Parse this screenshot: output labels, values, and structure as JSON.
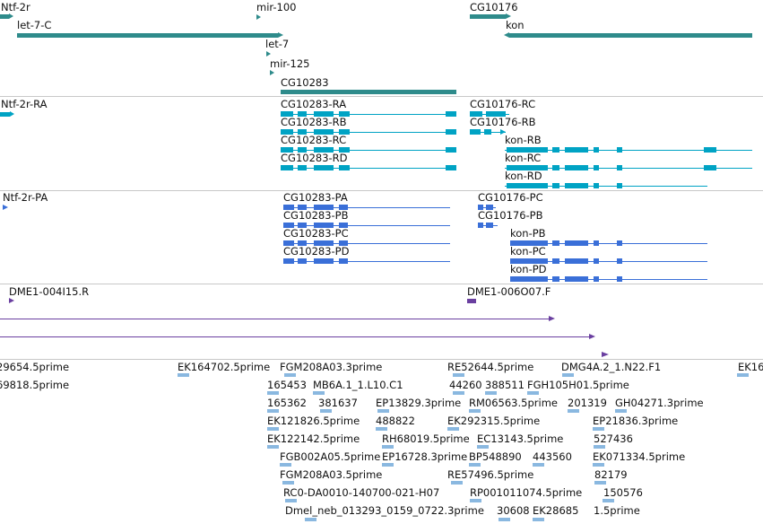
{
  "colors": {
    "gene": "#2e8b8b",
    "transcript": "#00a3c4",
    "protein": "#3a6fd8",
    "clone": "#6a3fa0",
    "est": "#8ab8e0",
    "divider": "#c8c8c8"
  },
  "genes": {
    "ntf2r": "Ntf-2r",
    "mir100": "mir-100",
    "cg10176": "CG10176",
    "let7c": "let-7-C",
    "kon": "kon",
    "let7": "let-7",
    "mir125": "mir-125",
    "cg10283": "CG10283"
  },
  "transcripts": {
    "ntf2r_ra": "Ntf-2r-RA",
    "cg10283_ra": "CG10283-RA",
    "cg10283_rb": "CG10283-RB",
    "cg10283_rc": "CG10283-RC",
    "cg10283_rd": "CG10283-RD",
    "cg10176_rc": "CG10176-RC",
    "cg10176_rb": "CG10176-RB",
    "kon_rb": "kon-RB",
    "kon_rc": "kon-RC",
    "kon_rd": "kon-RD"
  },
  "proteins": {
    "ntf2r_pa": "Ntf-2r-PA",
    "cg10283_pa": "CG10283-PA",
    "cg10283_pb": "CG10283-PB",
    "cg10283_pc": "CG10283-PC",
    "cg10283_pd": "CG10283-PD",
    "cg10176_pc": "CG10176-PC",
    "cg10176_pb": "CG10176-PB",
    "kon_pb": "kon-PB",
    "kon_pc": "kon-PC",
    "kon_pd": "kon-PD"
  },
  "clones": {
    "c1": "DME1-004I15.R",
    "c2": "DME1-006O07.F"
  },
  "ests": [
    "29654.5prime",
    "EK164702.5prime",
    "FGM208A03.3prime",
    "RE52644.5prime",
    "DMG4A.2_1.N22.F1",
    "EK16",
    "69818.5prime",
    "165453",
    "MB6A.1_1.L10.C1",
    "44260",
    "388511",
    "FGH105H01.5prime",
    "165362",
    "381637",
    "EP13829.3prime",
    "RM06563.5prime",
    "201319",
    "GH04271.3prime",
    "EK121826.5prime",
    "488822",
    "EK292315.5prime",
    "EP21836.3prime",
    "EK122142.5prime",
    "RH68019.5prime",
    "EC13143.5prime",
    "527436",
    "FGB002A05.5prime",
    "EP16728.3prime",
    "BP548890",
    "443560",
    "EK071334.5prime",
    "FGM208A03.5prime",
    "RE57496.5prime",
    "82179",
    "RC0-DA0010-140700-021-H07",
    "RP001011074.5prime",
    "150576",
    "Dmel_neb_013293_0159_0722.3prime",
    "30608",
    "EK28685",
    "1.5prime"
  ]
}
